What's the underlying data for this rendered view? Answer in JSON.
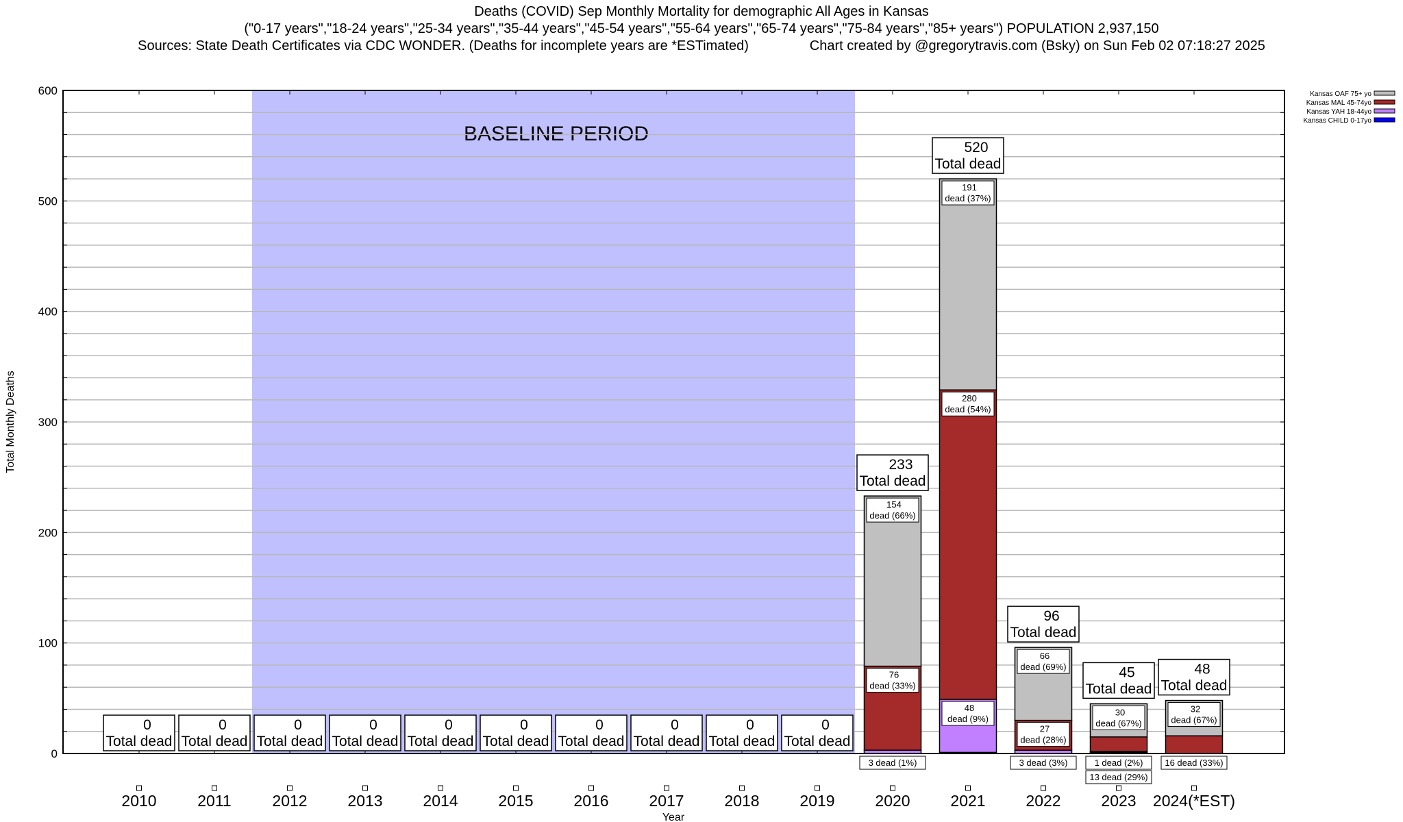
{
  "title": {
    "line1": "Deaths (COVID) Sep Monthly Mortality for demographic All Ages in Kansas",
    "line2": "(\"0-17 years\",\"18-24 years\",\"25-34 years\",\"35-44 years\",\"45-54 years\",\"55-64 years\",\"65-74 years\",\"75-84 years\",\"85+ years\") POPULATION 2,937,150",
    "line3": "Sources: State Death Certificates via CDC WONDER. (Deaths for incomplete years are *ESTimated)                Chart created by @gregorytravis.com (Bsky) on Sun Feb 02 07:18:27 2025"
  },
  "chart_data": {
    "type": "bar",
    "stacked": true,
    "xlabel": "Year",
    "ylabel": "Total Monthly Deaths",
    "ylim": [
      0,
      600
    ],
    "yticks": [
      0,
      100,
      200,
      300,
      400,
      500,
      600
    ],
    "grid": true,
    "legend_placement": "top-right, outside",
    "annotation": "BASELINE PERIOD",
    "baseline_range": [
      "2012",
      "2019"
    ],
    "categories": [
      "2010",
      "2011",
      "2012",
      "2013",
      "2014",
      "2015",
      "2016",
      "2017",
      "2018",
      "2019",
      "2020",
      "2021",
      "2022",
      "2023",
      "2024(*EST)"
    ],
    "totals": [
      0,
      0,
      0,
      0,
      0,
      0,
      0,
      0,
      0,
      0,
      233,
      520,
      96,
      45,
      48
    ],
    "total_label_suffix": "Total dead",
    "series": [
      {
        "name": "Kansas CHILD 0-17yo",
        "color": "#0000ff",
        "values": [
          0,
          0,
          0,
          0,
          0,
          0,
          0,
          0,
          0,
          0,
          0,
          1,
          0,
          1,
          0
        ],
        "labels": [
          null,
          null,
          null,
          null,
          null,
          null,
          null,
          null,
          null,
          null,
          null,
          null,
          null,
          null,
          null
        ]
      },
      {
        "name": "Kansas YAH 18-44yo",
        "color": "#c080ff",
        "values": [
          0,
          0,
          0,
          0,
          0,
          0,
          0,
          0,
          0,
          0,
          3,
          48,
          3,
          1,
          0
        ],
        "labels": [
          null,
          null,
          null,
          null,
          null,
          null,
          null,
          null,
          null,
          null,
          "3 dead (1%)",
          "48 dead (9%)",
          "3 dead (3%)",
          "1 dead (2%)",
          null
        ]
      },
      {
        "name": "Kansas MAL 45-74yo",
        "color": "#a52a2a",
        "values": [
          0,
          0,
          0,
          0,
          0,
          0,
          0,
          0,
          0,
          0,
          76,
          280,
          27,
          13,
          16
        ],
        "labels": [
          null,
          null,
          null,
          null,
          null,
          null,
          null,
          null,
          null,
          null,
          "76 dead (33%)",
          "280 dead (54%)",
          "27 dead (28%)",
          "13 dead (29%)",
          "16 dead (33%)"
        ]
      },
      {
        "name": "Kansas OAF 75+ yo",
        "color": "#c0c0c0",
        "values": [
          0,
          0,
          0,
          0,
          0,
          0,
          0,
          0,
          0,
          0,
          154,
          191,
          66,
          30,
          32
        ],
        "labels": [
          null,
          null,
          null,
          null,
          null,
          null,
          null,
          null,
          null,
          null,
          "154 dead (66%)",
          "191 dead (37%)",
          "66 dead (69%)",
          "30 dead (67%)",
          "32 dead (67%)"
        ]
      }
    ],
    "baseline_color": "#c0c0ff"
  }
}
